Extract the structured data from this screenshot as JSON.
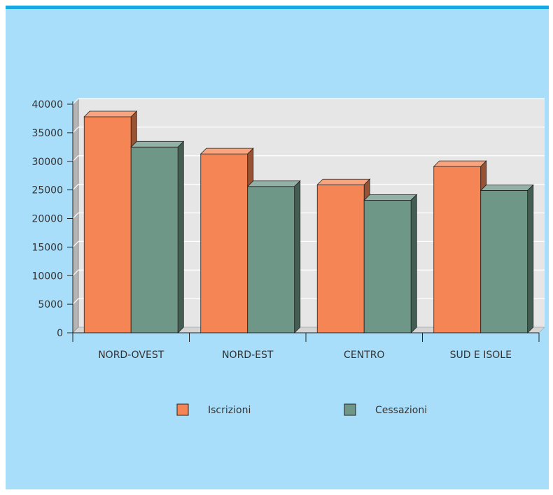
{
  "chart_data": {
    "type": "bar",
    "categories": [
      "NORD-OVEST",
      "NORD-EST",
      "CENTRO",
      "SUD E ISOLE"
    ],
    "series": [
      {
        "name": "Iscrizioni",
        "values": [
          37800,
          31300,
          25900,
          29100
        ],
        "color": "#f58554"
      },
      {
        "name": "Cessazioni",
        "values": [
          32500,
          25600,
          23200,
          24900
        ],
        "color": "#6e9788"
      }
    ],
    "ylim": [
      0,
      40000
    ],
    "yticks": [
      0,
      5000,
      10000,
      15000,
      20000,
      25000,
      30000,
      35000,
      40000
    ],
    "grid": true,
    "legend_position": "bottom",
    "style": "3d-bars"
  },
  "colors": {
    "background": "#a9defa",
    "top_rule": "#1aa7df",
    "plot_area": "#e6e6e6",
    "grid": "#ffffff"
  }
}
